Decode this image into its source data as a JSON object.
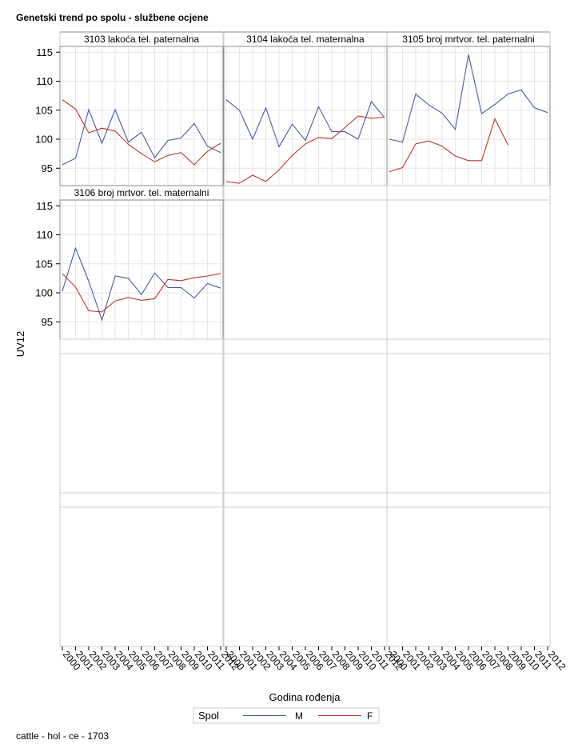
{
  "title": "Genetski trend po spolu - službene ocjene",
  "footnote": "cattle - hol - ce - 1703",
  "chart_data": {
    "type": "line",
    "title": "Genetski trend po spolu - službene ocjene",
    "xlabel": "Godina rođenja",
    "ylabel": "UV12",
    "ylim": [
      92,
      116
    ],
    "yticks": [
      95,
      100,
      105,
      110,
      115
    ],
    "x": [
      "2000",
      "2001",
      "2002",
      "2003",
      "2004",
      "2005",
      "2006",
      "2007",
      "2008",
      "2009",
      "2010",
      "2011",
      "2012"
    ],
    "grid": true,
    "legend": {
      "title": "Spol",
      "placement": "bottom",
      "entries": [
        "M",
        "F"
      ]
    },
    "colors": {
      "M": "#4a5a99",
      "F": "#b03a2e"
    },
    "panels": [
      {
        "name": "3103 lakoća tel. paternalna",
        "series": [
          {
            "name": "M",
            "values": [
              95.6,
              96.7,
              105.1,
              99.3,
              105.1,
              99.5,
              101.2,
              96.8,
              99.8,
              100.2,
              102.7,
              98.8,
              97.7
            ]
          },
          {
            "name": "F",
            "values": [
              106.8,
              105.2,
              101.1,
              101.9,
              101.4,
              99.1,
              97.5,
              96.1,
              97.2,
              97.7,
              95.6,
              97.9,
              99.3
            ]
          }
        ]
      },
      {
        "name": "3104 lakoća tel. maternalna",
        "series": [
          {
            "name": "M",
            "values": [
              106.8,
              105.0,
              100.0,
              105.4,
              98.7,
              102.6,
              99.8,
              105.6,
              101.3,
              101.3,
              100.0,
              106.5,
              103.7
            ]
          },
          {
            "name": "F",
            "values": [
              92.7,
              92.4,
              93.8,
              92.7,
              94.7,
              97.2,
              99.2,
              100.3,
              100.1,
              102.0,
              104.0,
              103.6,
              103.8
            ]
          }
        ]
      },
      {
        "name": "3105 broj mrtvor. tel. paternalni",
        "series": [
          {
            "name": "M",
            "values": [
              100.0,
              99.5,
              107.8,
              105.9,
              104.5,
              101.7,
              114.6,
              104.4,
              106.0,
              107.8,
              108.5,
              105.4,
              104.6
            ]
          },
          {
            "name": "F",
            "values": [
              94.4,
              95.1,
              99.2,
              99.7,
              98.8,
              97.1,
              96.3,
              96.3,
              103.5,
              99.0,
              null,
              null,
              null
            ]
          }
        ]
      },
      {
        "name": "3106 broj mrtvor. tel. maternalni",
        "series": [
          {
            "name": "M",
            "values": [
              100.3,
              107.7,
              102.0,
              95.3,
              102.9,
              102.5,
              99.7,
              103.4,
              100.9,
              100.9,
              99.1,
              101.6,
              100.8
            ]
          },
          {
            "name": "F",
            "values": [
              103.3,
              101.0,
              96.9,
              96.7,
              98.6,
              99.2,
              98.7,
              99.0,
              102.3,
              102.1,
              102.6,
              102.9,
              103.3
            ]
          }
        ]
      }
    ]
  }
}
